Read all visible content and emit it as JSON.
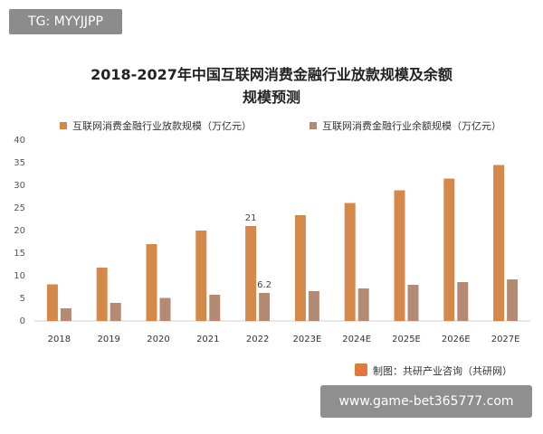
{
  "badge_top": "TG: MYYJJPP",
  "badge_bottom": "www.game-bet365777.com",
  "source_text": "制图：共研产业咨询（共研网）",
  "colors": {
    "series1": "#d4884a",
    "series2": "#b48a75",
    "axis": "#cfcfcf",
    "grid": "#e8e8e8"
  },
  "chart_data": {
    "type": "bar",
    "title_line1": "2018-2027年中国互联网消费金融行业放款规模及余额",
    "title_line2": "规模预测",
    "categories": [
      "2018",
      "2019",
      "2020",
      "2021",
      "2022",
      "2023E",
      "2024E",
      "2025E",
      "2026E",
      "2027E"
    ],
    "series": [
      {
        "name": "互联网消费金融行业放款规模（万亿元）",
        "values": [
          8.1,
          11.8,
          17.0,
          20.0,
          21.0,
          23.4,
          26.1,
          28.9,
          31.5,
          34.5
        ]
      },
      {
        "name": "互联网消费金融行业余额规模（万亿元）",
        "values": [
          2.8,
          4.0,
          5.1,
          5.8,
          6.2,
          6.6,
          7.2,
          8.0,
          8.6,
          9.2
        ]
      }
    ],
    "data_labels": [
      {
        "series": 0,
        "index": 4,
        "text": "21"
      },
      {
        "series": 1,
        "index": 4,
        "text": "6.2"
      }
    ],
    "ylim": [
      0,
      40
    ],
    "yticks": [
      0,
      5,
      10,
      15,
      20,
      25,
      30,
      35,
      40
    ],
    "legend_position": "top",
    "grid": false
  }
}
